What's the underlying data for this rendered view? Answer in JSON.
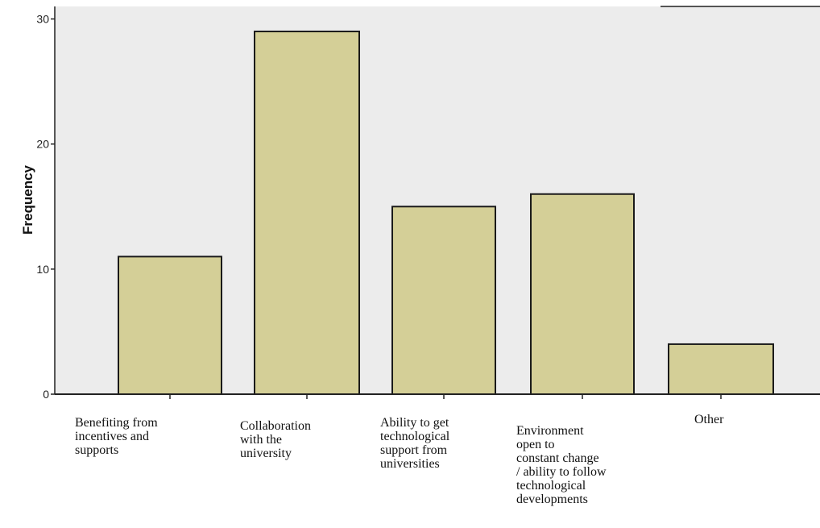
{
  "chart_data": {
    "type": "bar",
    "categories": [
      "Benefiting from\nincentives and\nsupports",
      "Collaboration\nwith the\nuniversity",
      "Ability to  get\ntechnological\nsupport from\nuniversities",
      "Environment\nopen to\nconstant change\n/ ability to follow\ntechnological\ndevelopments",
      "Other"
    ],
    "values": [
      11,
      29,
      15,
      16,
      4
    ],
    "ylabel": "Frequency",
    "xlabel": "",
    "ylim": [
      0,
      31
    ],
    "yticks": [
      "0",
      "10",
      "20",
      "30"
    ],
    "grid": false,
    "colors": {
      "bar_fill": "#d4cf97",
      "bar_stroke": "#1a1a1a",
      "plot_background": "#ececec",
      "axis": "#222222"
    }
  }
}
